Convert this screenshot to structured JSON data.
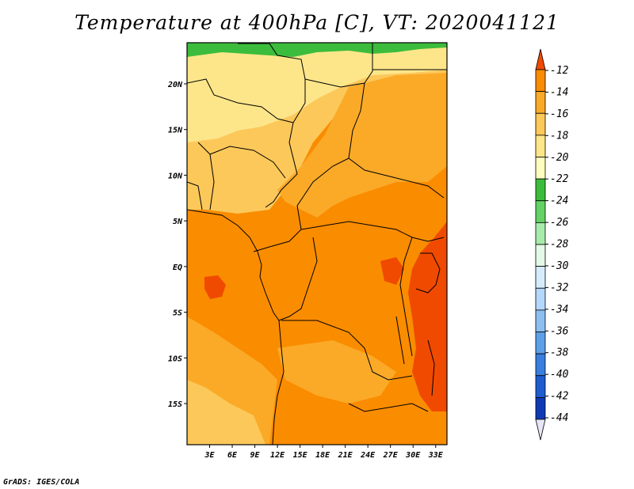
{
  "title": "Temperature at 400hPa [C], VT: 2020041121",
  "credit": "GrADS: IGES/COLA",
  "map": {
    "lat_labels": [
      "20N",
      "15N",
      "10N",
      "5N",
      "EQ",
      "5S",
      "10S",
      "15S"
    ],
    "lat_values": [
      20,
      15,
      10,
      5,
      0,
      -5,
      -10,
      -15
    ],
    "lon_labels": [
      "3E",
      "6E",
      "9E",
      "12E",
      "15E",
      "18E",
      "21E",
      "24E",
      "27E",
      "30E",
      "33E"
    ],
    "lon_values": [
      3,
      6,
      9,
      12,
      15,
      18,
      21,
      24,
      27,
      30,
      33
    ],
    "lat_range": [
      -19.5,
      24.5
    ],
    "lon_range": [
      0,
      34.5
    ]
  },
  "colorbar": {
    "labels": [
      "-12",
      "-14",
      "-16",
      "-18",
      "-20",
      "-22",
      "-24",
      "-26",
      "-28",
      "-30",
      "-32",
      "-34",
      "-36",
      "-38",
      "-40",
      "-42",
      "-44"
    ],
    "colors": [
      "#f04a00",
      "#fa8c00",
      "#fbaa28",
      "#fcc85a",
      "#fde68a",
      "#fefcbe",
      "#3cbc3c",
      "#64d264",
      "#a6ebaa",
      "#e3f8e6",
      "#d6ecfa",
      "#b4d8fa",
      "#8cbff0",
      "#5ea0e8",
      "#3a7ee0",
      "#1e5cd0",
      "#103ab4",
      "#0a1c80"
    ],
    "top_triangle_color": "#f04a00",
    "bottom_triangle_color": "#e6e6f8"
  }
}
